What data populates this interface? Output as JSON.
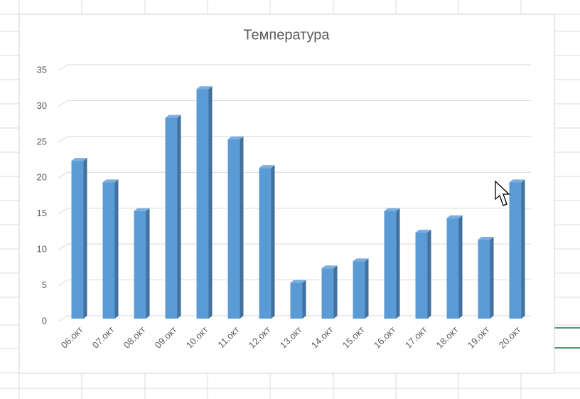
{
  "chart_data": {
    "type": "bar",
    "title": "Температура",
    "categories": [
      "06.окт",
      "07.окт",
      "08.окт",
      "09.окт",
      "10.окт",
      "11.окт",
      "12.окт",
      "13.окт",
      "14.окт",
      "15.окт",
      "16.окт",
      "17.окт",
      "18.окт",
      "19.окт",
      "20.окт"
    ],
    "values": [
      22,
      19,
      15,
      28,
      32,
      25,
      21,
      5,
      7,
      8,
      15,
      12,
      14,
      11,
      19
    ],
    "color": "#5b9bd5",
    "ylim": [
      0,
      35
    ],
    "yticks": [
      0,
      5,
      10,
      15,
      20,
      25,
      30,
      35
    ],
    "grid": true
  }
}
